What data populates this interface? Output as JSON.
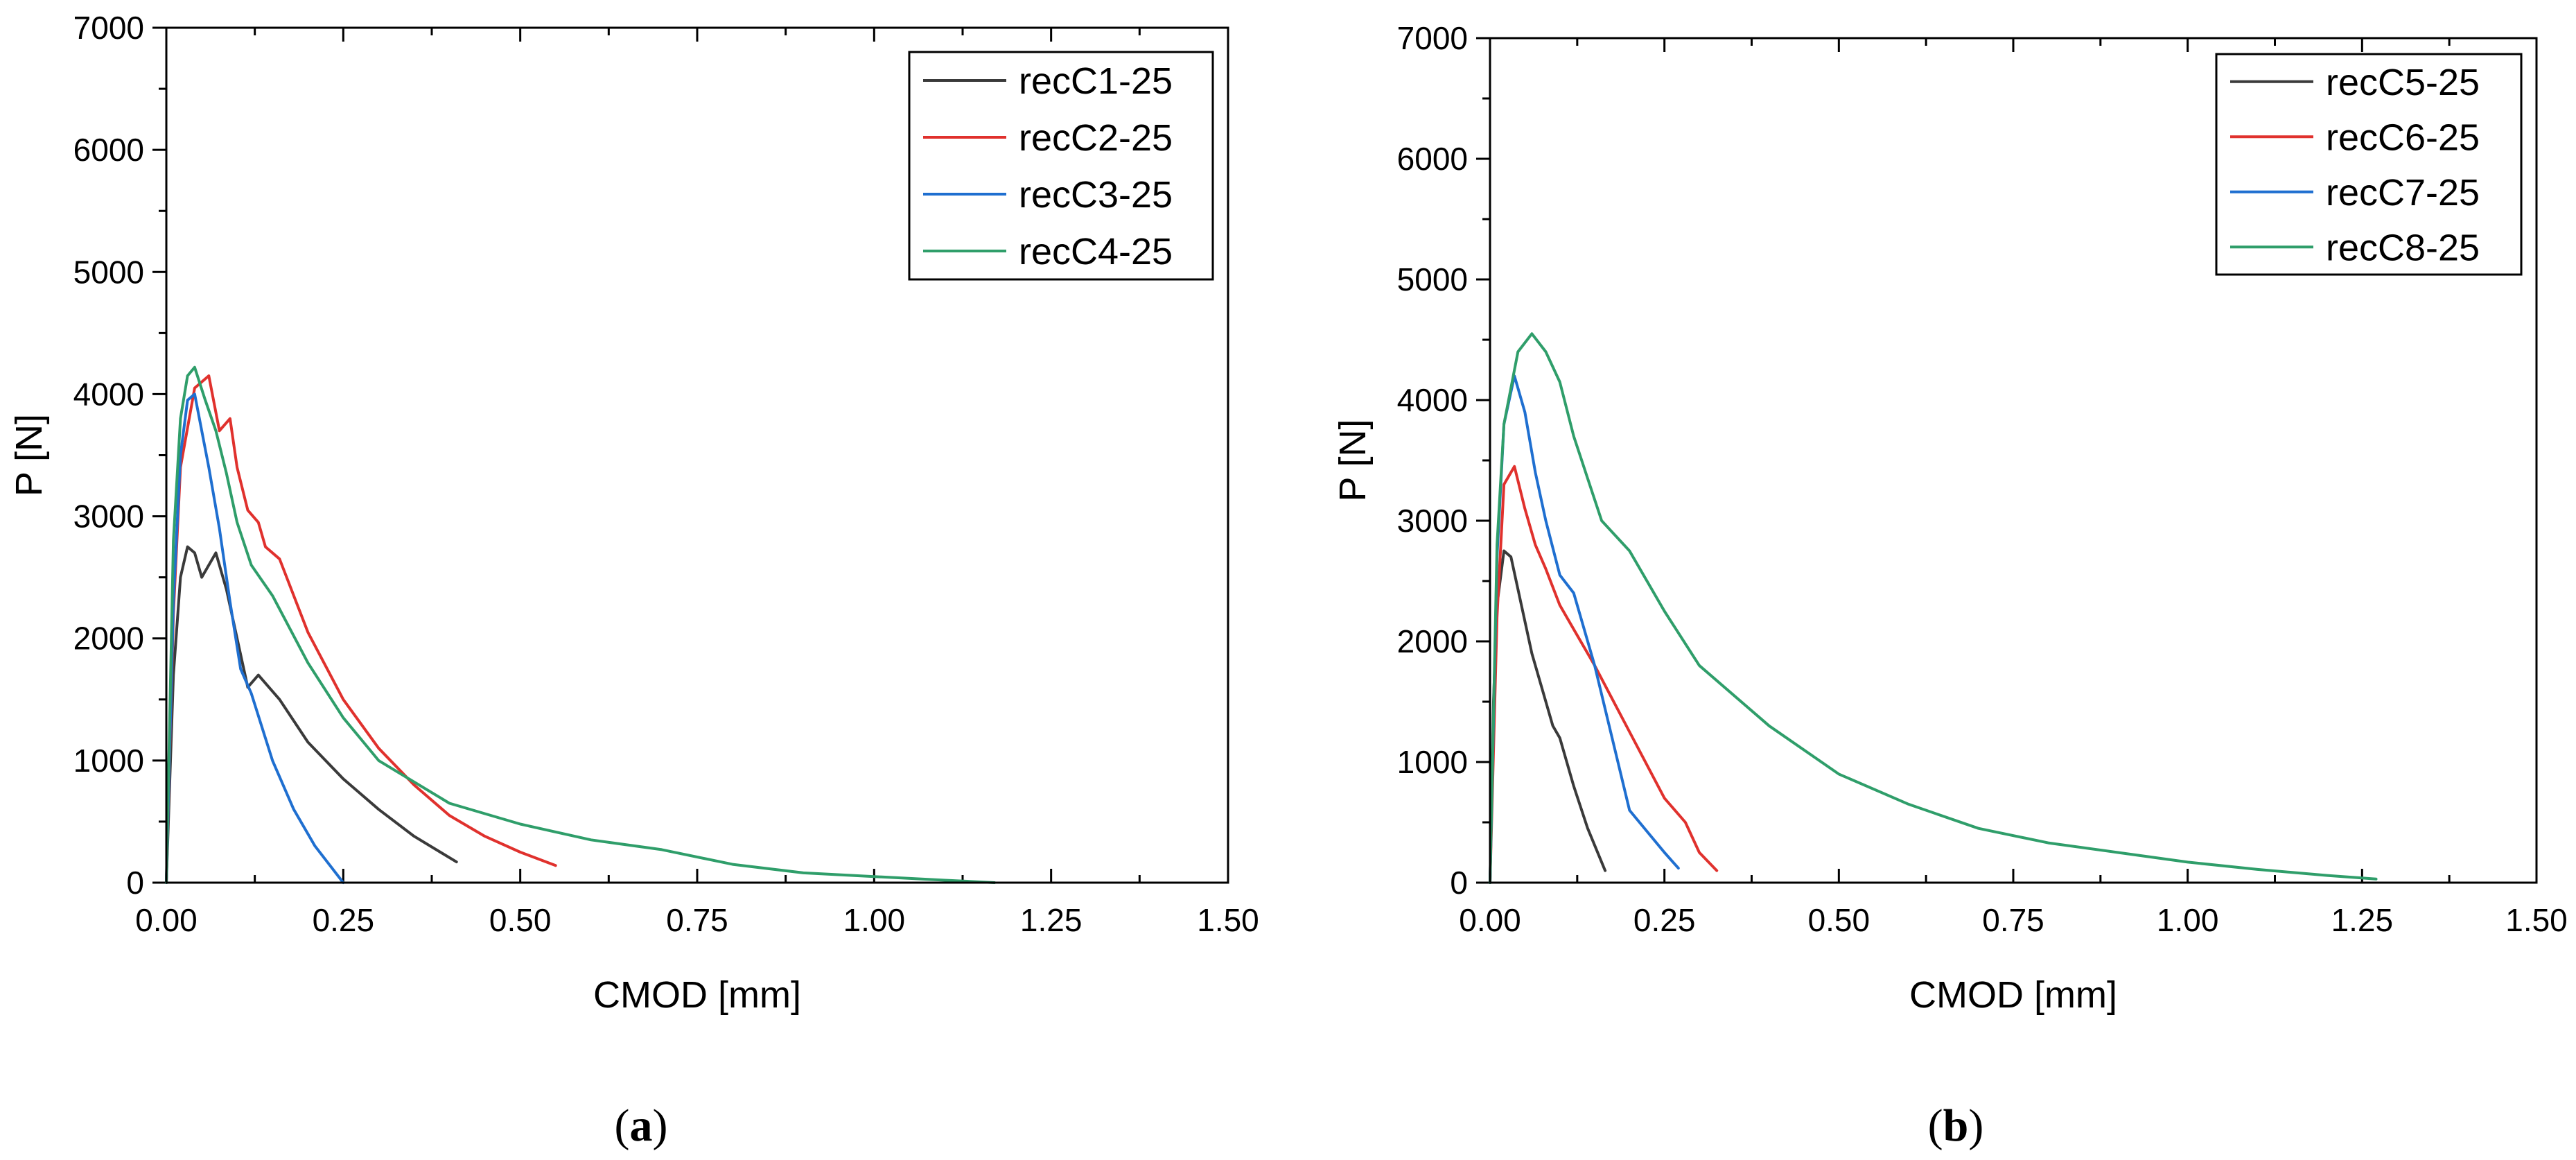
{
  "figure": {
    "panels": [
      {
        "letter": "a"
      },
      {
        "letter": "b"
      }
    ]
  },
  "chart_data": [
    {
      "type": "line",
      "panel": "a",
      "title": "",
      "xlabel": "CMOD [mm]",
      "ylabel": "P [N]",
      "xlim": [
        0,
        1.5
      ],
      "ylim": [
        0,
        7000
      ],
      "xticks": [
        0,
        0.25,
        0.5,
        0.75,
        1.0,
        1.25,
        1.5
      ],
      "xtick_labels": [
        "0.00",
        "0.25",
        "0.50",
        "0.75",
        "1.00",
        "1.25",
        "1.50"
      ],
      "yticks": [
        0,
        1000,
        2000,
        3000,
        4000,
        5000,
        6000,
        7000
      ],
      "ytick_labels": [
        "0",
        "1000",
        "2000",
        "3000",
        "4000",
        "5000",
        "6000",
        "7000"
      ],
      "grid": false,
      "legend_position": "top-right",
      "series": [
        {
          "name": "recC1-25",
          "color": "#3a3a3a",
          "x": [
            0,
            0.01,
            0.02,
            0.03,
            0.04,
            0.05,
            0.06,
            0.07,
            0.085,
            0.1,
            0.115,
            0.13,
            0.16,
            0.2,
            0.25,
            0.3,
            0.35,
            0.41
          ],
          "y": [
            0,
            1700,
            2500,
            2750,
            2700,
            2500,
            2600,
            2700,
            2400,
            2000,
            1600,
            1700,
            1500,
            1150,
            850,
            600,
            380,
            170
          ]
        },
        {
          "name": "recC2-25",
          "color": "#e0312d",
          "x": [
            0,
            0.01,
            0.02,
            0.04,
            0.06,
            0.075,
            0.09,
            0.1,
            0.115,
            0.13,
            0.14,
            0.16,
            0.2,
            0.25,
            0.3,
            0.35,
            0.4,
            0.45,
            0.5,
            0.55
          ],
          "y": [
            0,
            2200,
            3400,
            4050,
            4150,
            3700,
            3800,
            3400,
            3050,
            2950,
            2750,
            2650,
            2050,
            1500,
            1100,
            800,
            550,
            380,
            250,
            140
          ]
        },
        {
          "name": "recC3-25",
          "color": "#1f6fd0",
          "x": [
            0,
            0.01,
            0.02,
            0.03,
            0.04,
            0.05,
            0.06,
            0.075,
            0.09,
            0.105,
            0.12,
            0.15,
            0.18,
            0.21,
            0.25
          ],
          "y": [
            0,
            2300,
            3500,
            3950,
            4000,
            3700,
            3400,
            2900,
            2300,
            1750,
            1550,
            1000,
            600,
            300,
            0
          ]
        },
        {
          "name": "recC4-25",
          "color": "#2f9e6a",
          "x": [
            0,
            0.01,
            0.02,
            0.03,
            0.04,
            0.055,
            0.07,
            0.085,
            0.1,
            0.12,
            0.15,
            0.2,
            0.25,
            0.3,
            0.4,
            0.5,
            0.6,
            0.7,
            0.8,
            0.9,
            1.0,
            1.1,
            1.17
          ],
          "y": [
            0,
            2800,
            3800,
            4150,
            4220,
            3950,
            3700,
            3350,
            2950,
            2600,
            2350,
            1800,
            1350,
            1000,
            650,
            480,
            350,
            270,
            150,
            80,
            50,
            20,
            0
          ]
        }
      ]
    },
    {
      "type": "line",
      "panel": "b",
      "title": "",
      "xlabel": "CMOD [mm]",
      "ylabel": "P [N]",
      "xlim": [
        0,
        1.5
      ],
      "ylim": [
        0,
        7000
      ],
      "xticks": [
        0,
        0.25,
        0.5,
        0.75,
        1.0,
        1.25,
        1.5
      ],
      "xtick_labels": [
        "0.00",
        "0.25",
        "0.50",
        "0.75",
        "1.00",
        "1.25",
        "1.50"
      ],
      "yticks": [
        0,
        1000,
        2000,
        3000,
        4000,
        5000,
        6000,
        7000
      ],
      "ytick_labels": [
        "0",
        "1000",
        "2000",
        "3000",
        "4000",
        "5000",
        "6000",
        "7000"
      ],
      "grid": false,
      "legend_position": "top-right",
      "series": [
        {
          "name": "recC5-25",
          "color": "#3a3a3a",
          "x": [
            0,
            0.005,
            0.01,
            0.02,
            0.03,
            0.045,
            0.06,
            0.075,
            0.09,
            0.1,
            0.12,
            0.14,
            0.165
          ],
          "y": [
            0,
            1500,
            2300,
            2750,
            2700,
            2300,
            1900,
            1600,
            1300,
            1200,
            800,
            450,
            100
          ]
        },
        {
          "name": "recC6-25",
          "color": "#e0312d",
          "x": [
            0,
            0.01,
            0.02,
            0.035,
            0.05,
            0.065,
            0.08,
            0.1,
            0.12,
            0.15,
            0.2,
            0.25,
            0.28,
            0.3,
            0.325
          ],
          "y": [
            0,
            2200,
            3300,
            3450,
            3100,
            2800,
            2600,
            2300,
            2100,
            1800,
            1250,
            700,
            500,
            250,
            100
          ]
        },
        {
          "name": "recC7-25",
          "color": "#1f6fd0",
          "x": [
            0,
            0.01,
            0.02,
            0.035,
            0.05,
            0.065,
            0.08,
            0.1,
            0.12,
            0.15,
            0.2,
            0.25,
            0.27
          ],
          "y": [
            0,
            2700,
            3800,
            4200,
            3900,
            3400,
            3000,
            2550,
            2400,
            1800,
            600,
            250,
            120
          ]
        },
        {
          "name": "recC8-25",
          "color": "#2f9e6a",
          "x": [
            0,
            0.01,
            0.02,
            0.04,
            0.06,
            0.08,
            0.1,
            0.12,
            0.14,
            0.16,
            0.2,
            0.25,
            0.3,
            0.4,
            0.5,
            0.6,
            0.7,
            0.8,
            0.9,
            1.0,
            1.1,
            1.2,
            1.27
          ],
          "y": [
            0,
            2800,
            3800,
            4400,
            4550,
            4400,
            4150,
            3700,
            3350,
            3000,
            2750,
            2250,
            1800,
            1300,
            900,
            650,
            450,
            330,
            250,
            170,
            110,
            60,
            30
          ]
        }
      ]
    }
  ]
}
